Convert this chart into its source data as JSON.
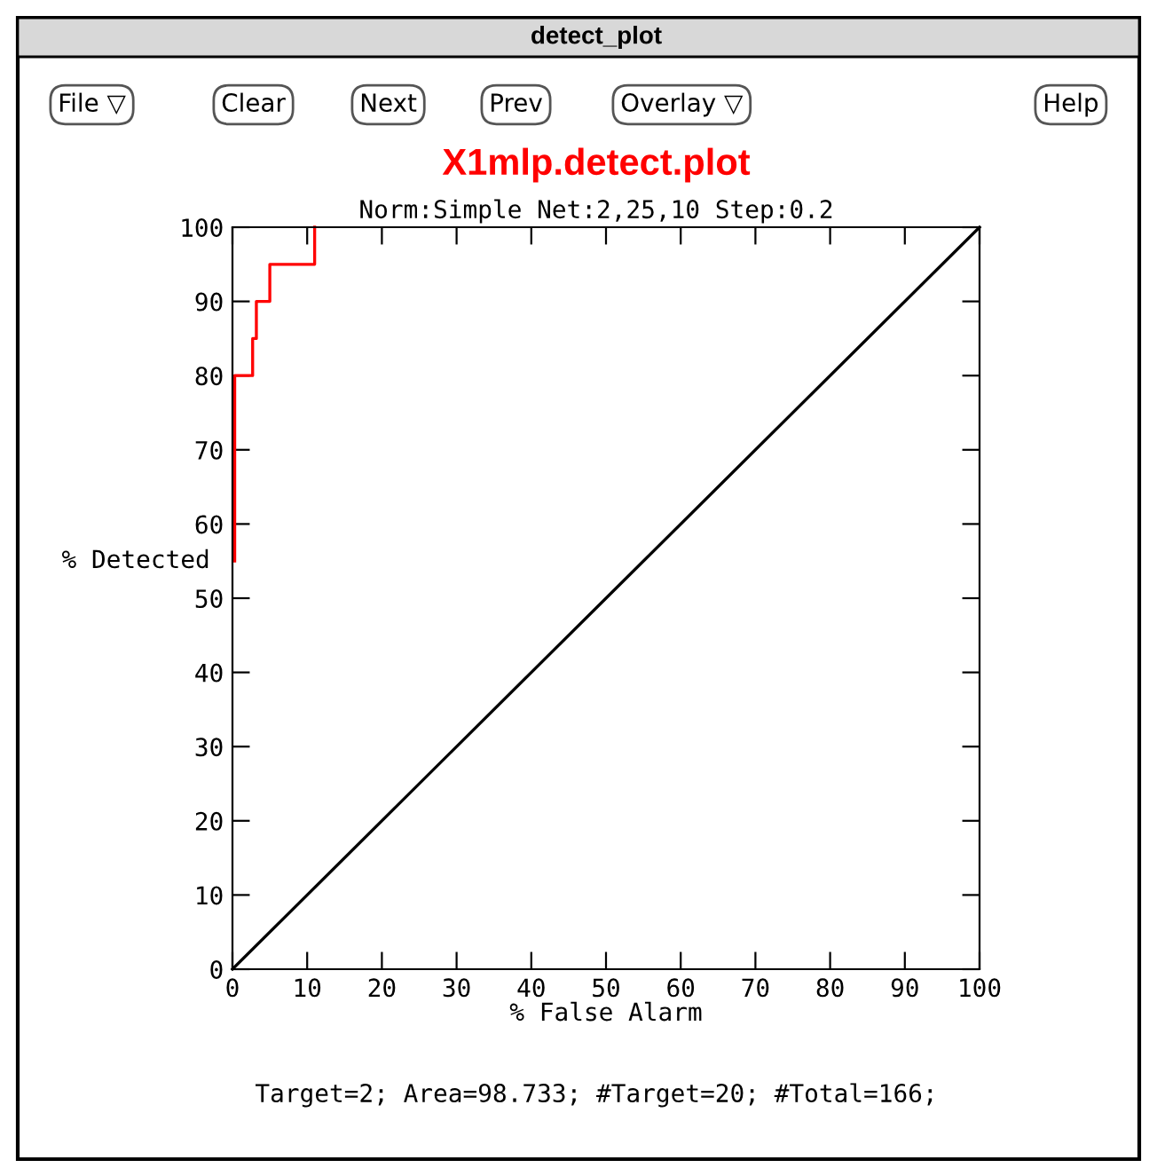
{
  "chart_data": {
    "type": "line",
    "title": "X1mlp.detect.plot",
    "subtitle": "Norm:Simple Net:2,25,10 Step:0.2",
    "xlabel": "% False Alarm",
    "ylabel": "% Detected",
    "series": [
      {
        "color": "#ff0000",
        "x": [
          0.3,
          0.3,
          2.7,
          2.7,
          3.2,
          3.2,
          5,
          5,
          11,
          11
        ],
        "values": [
          55,
          80,
          80,
          85,
          85,
          90,
          90,
          95,
          95,
          100
        ]
      },
      {
        "color": "#000000",
        "x": [
          0,
          100
        ],
        "values": [
          0,
          100
        ]
      }
    ],
    "xlim": [
      0,
      100
    ],
    "ylim": [
      0,
      100
    ],
    "xticks": [
      0,
      10,
      20,
      30,
      40,
      50,
      60,
      70,
      80,
      90,
      100
    ],
    "yticks": [
      0,
      10,
      20,
      30,
      40,
      50,
      60,
      70,
      80,
      90,
      100
    ],
    "grid": false,
    "legend": false,
    "marker": "none",
    "line_style": "solid",
    "annotations": [
      "Target=2; Area=98.733; #Target=20; #Total=166;",
      "detect_plot",
      "File ▽",
      "Clear",
      "Next",
      "Prev",
      "Overlay ▽",
      "Help"
    ]
  }
}
